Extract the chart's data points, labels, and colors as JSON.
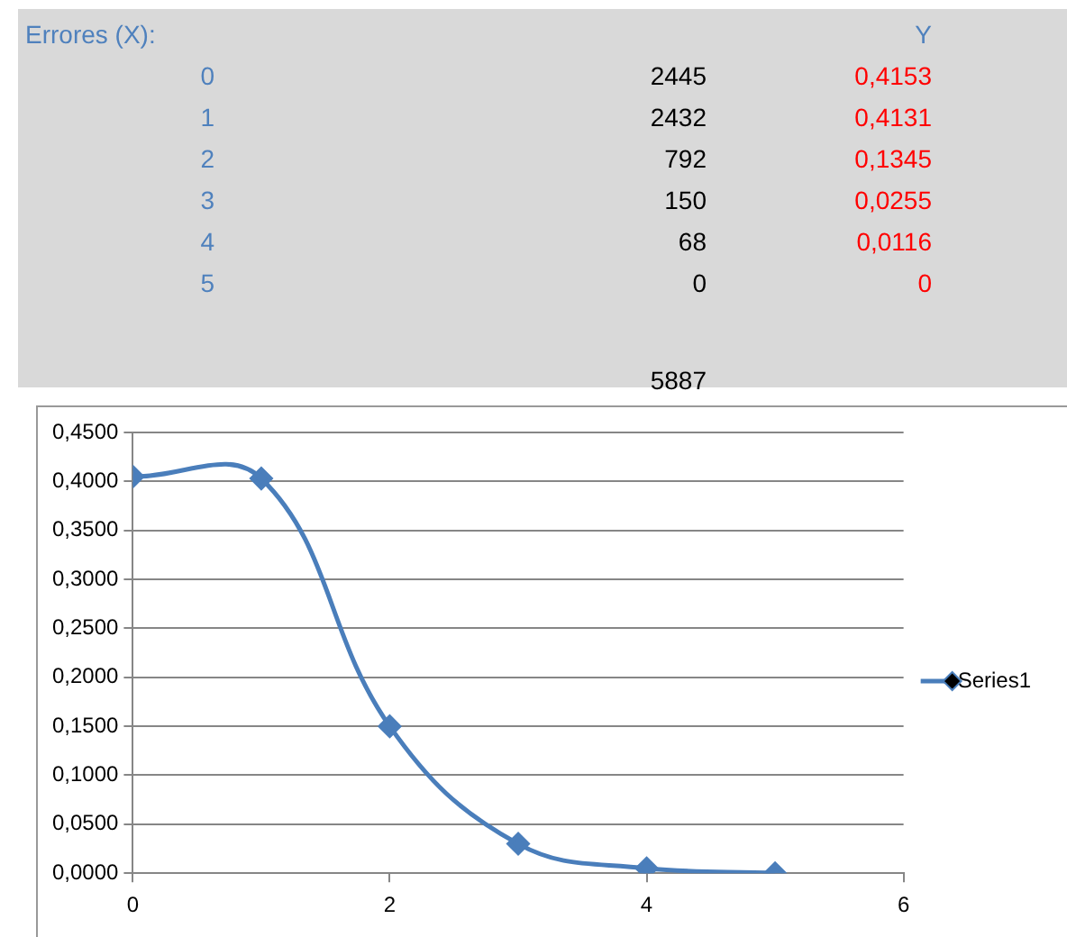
{
  "chart_data": {
    "type": "line",
    "annotations": [
      "Errores (X):",
      "Y",
      "0",
      "2445",
      "0,4153",
      "1",
      "2432",
      "0,4131",
      "2",
      "792",
      "0,1345",
      "3",
      "150",
      "0,0255",
      "4",
      "68",
      "0,0116",
      "5",
      "0",
      "0",
      "5887"
    ],
    "x": [
      0,
      1,
      2,
      3,
      4,
      5
    ],
    "series": [
      {
        "name": "Series1",
        "color": "#4a7ebb",
        "values": [
          0.405,
          0.403,
          0.15,
          0.03,
          0.005,
          0
        ]
      }
    ],
    "xlim": [
      0,
      6
    ],
    "xticks": [
      0,
      2,
      4,
      6
    ],
    "ylim": [
      0,
      0.45
    ],
    "yticks": [
      {
        "value": 0,
        "label": "0,0000"
      },
      {
        "value": 0.05,
        "label": "0,0500"
      },
      {
        "value": 0.1,
        "label": "0,1000"
      },
      {
        "value": 0.15,
        "label": "0,1500"
      },
      {
        "value": 0.2,
        "label": "0,2000"
      },
      {
        "value": 0.25,
        "label": "0,2500"
      },
      {
        "value": 0.3,
        "label": "0,3000"
      },
      {
        "value": 0.35,
        "label": "0,3500"
      },
      {
        "value": 0.4,
        "label": "0,4000"
      },
      {
        "value": 0.45,
        "label": "0,4500"
      }
    ],
    "grid": "y",
    "legend": "right",
    "marker": "diamond",
    "line_style": "solid"
  }
}
